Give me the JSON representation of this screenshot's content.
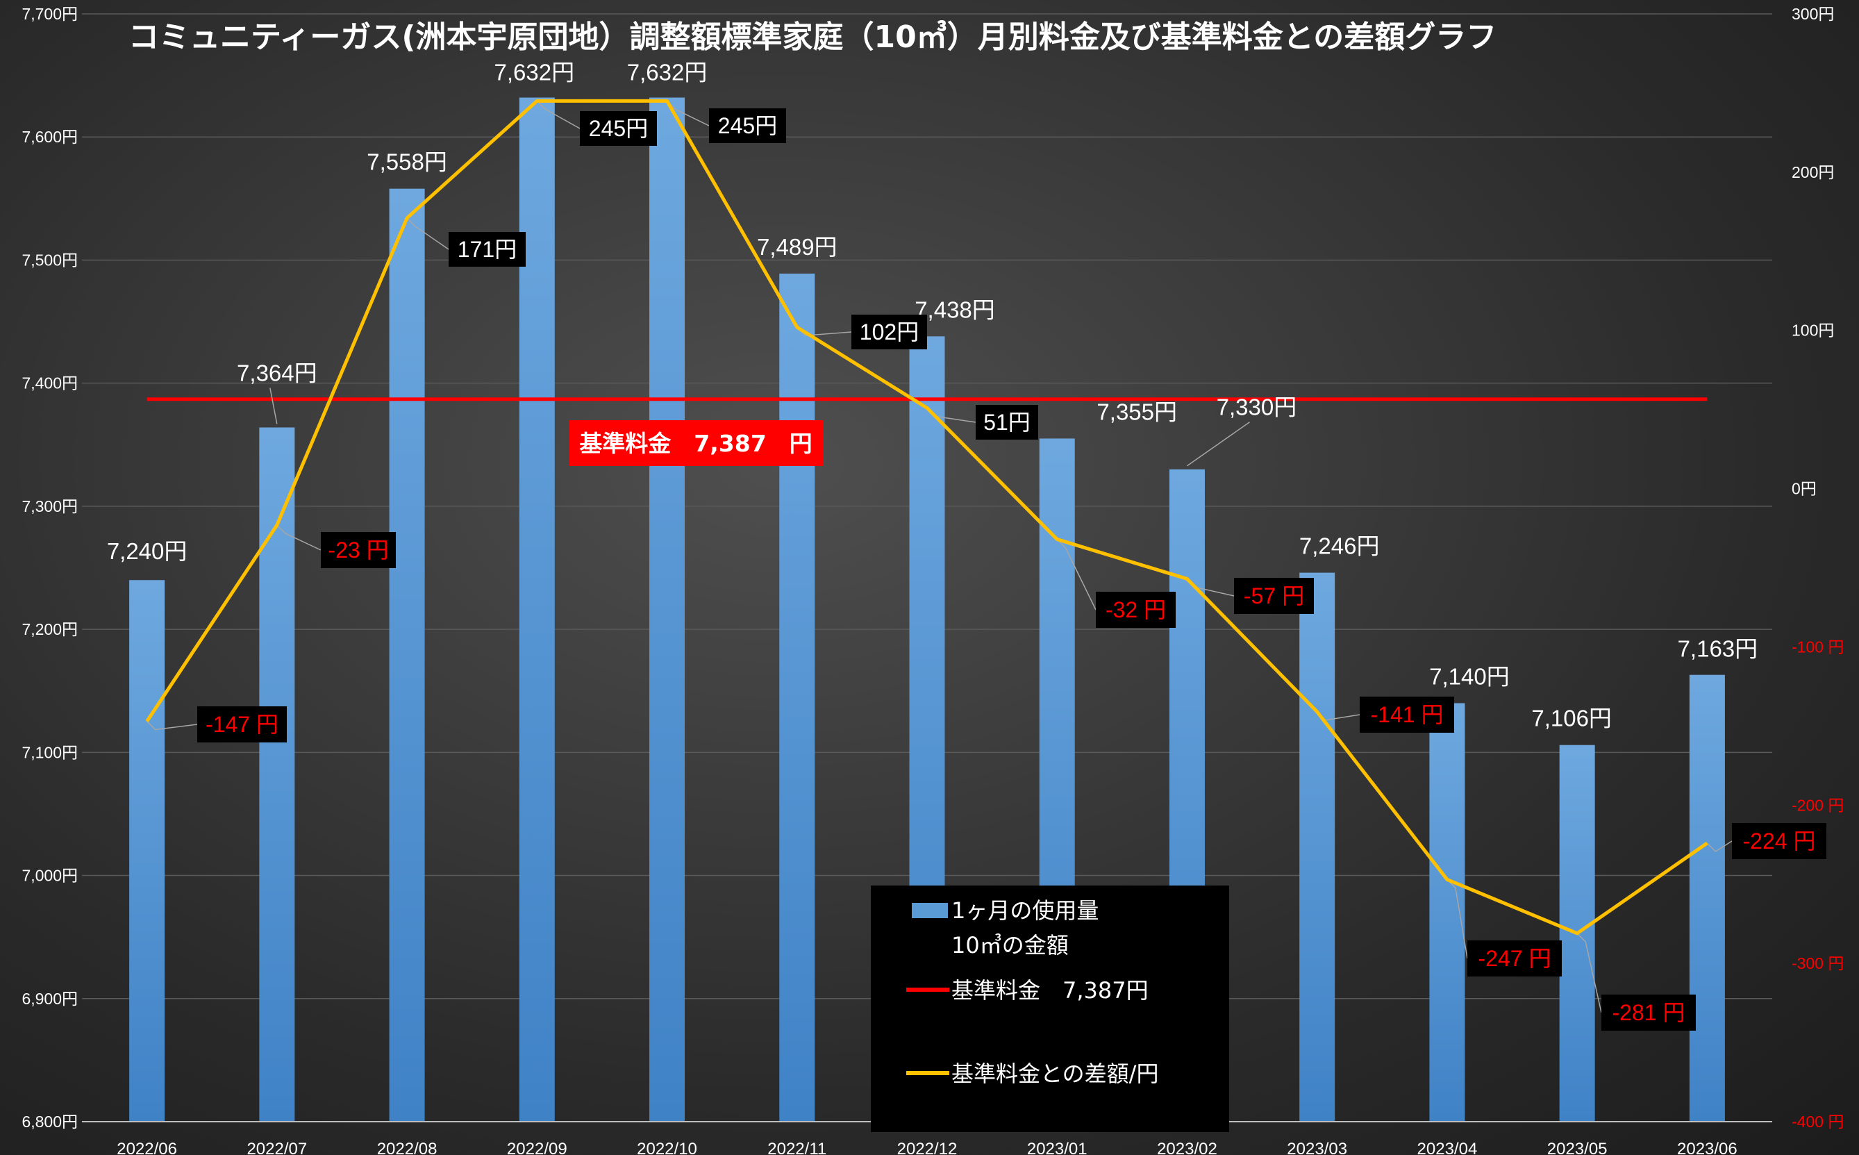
{
  "chart_data": {
    "type": "bar+line",
    "title": "コミュニティーガス(洲本宇原団地）調整額標準家庭（10㎥）月別料金及び基準料金との差額グラフ",
    "categories": [
      "2022/06",
      "2022/07",
      "2022/08",
      "2022/09",
      "2022/10",
      "2022/11",
      "2022/12",
      "2023/01",
      "2023/02",
      "2023/03",
      "2023/04",
      "2023/05",
      "2023/06"
    ],
    "bar_series": {
      "name_line1": "1ヶ月の使用量",
      "name_line2": "10㎥の金額",
      "values": [
        7240,
        7364,
        7558,
        7632,
        7632,
        7489,
        7438,
        7355,
        7330,
        7246,
        7140,
        7106,
        7163
      ],
      "labels": [
        "7,240円",
        "7,364円",
        "7,558円",
        "7,632円",
        "7,632円",
        "7,489円",
        "7,438円",
        "7,355円",
        "7,330円",
        "7,246円",
        "7,140円",
        "7,106円",
        "7,163円"
      ],
      "color": "#5b9bd5"
    },
    "reference_line": {
      "name": "基準料金　7,387円",
      "value": 7387,
      "label": "基準料金　7,387　円",
      "color": "#ff0000"
    },
    "diff_series": {
      "name": "基準料金との差額/円",
      "values": [
        -147,
        -23,
        171,
        245,
        245,
        102,
        51,
        -32,
        -57,
        -141,
        -247,
        -281,
        -224
      ],
      "labels": [
        "-147 円",
        "-23 円",
        "171円",
        "245円",
        "245円",
        "102円",
        "51円",
        "-32 円",
        "-57 円",
        "-141 円",
        "-247 円",
        "-281 円",
        "-224 円"
      ],
      "color": "#ffc000",
      "negative_label_color": "#ff0000",
      "positive_label_color": "#ffffff"
    },
    "y_left": {
      "min": 6800,
      "max": 7700,
      "ticks": [
        "6,800円",
        "6,900円",
        "7,000円",
        "7,100円",
        "7,200円",
        "7,300円",
        "7,400円",
        "7,500円",
        "7,600円",
        "7,700円"
      ]
    },
    "y_right": {
      "min": -400,
      "max": 300,
      "ticks": [
        "-400 円",
        "-300 円",
        "-200 円",
        "-100 円",
        "0円",
        "100円",
        "200円",
        "300円"
      ]
    },
    "grid": true,
    "legend_position": "bottom-center"
  }
}
